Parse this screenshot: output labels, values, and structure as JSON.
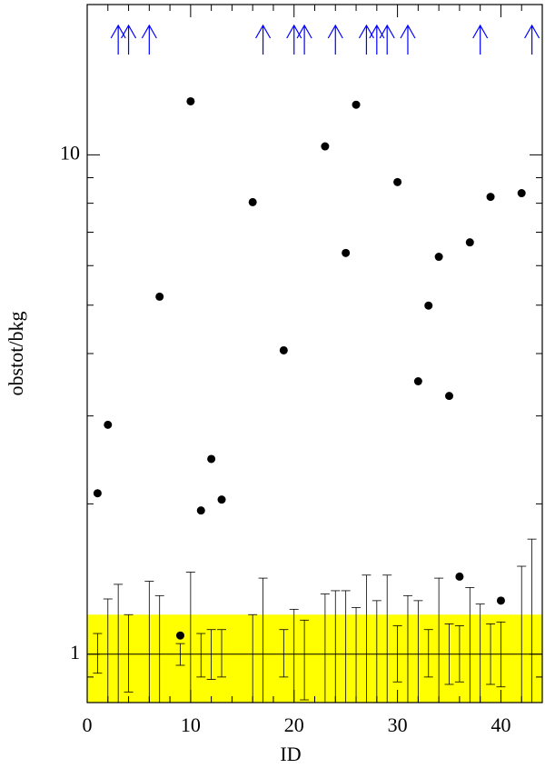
{
  "chart_data": {
    "type": "scatter",
    "xlabel": "ID",
    "ylabel": "obstot/bkg",
    "xlim": [
      0,
      44
    ],
    "ylim": [
      0.8,
      20
    ],
    "log_y": true,
    "xticks": [
      0,
      10,
      20,
      30,
      40
    ],
    "xminor_ticks": [
      2,
      4,
      6,
      8,
      12,
      14,
      16,
      18,
      22,
      24,
      26,
      28,
      32,
      34,
      36,
      38,
      42
    ],
    "yticks": [
      1,
      10
    ],
    "yminor_ticks": [
      0.8,
      0.9,
      2,
      3,
      4,
      5,
      6,
      7,
      8,
      9,
      20
    ],
    "band": {
      "range": [
        0.8,
        1.2
      ],
      "color": "#ffff00"
    },
    "hline": 1,
    "points": {
      "color": "#000000",
      "x": [
        1,
        2,
        7,
        9,
        10,
        11,
        12,
        13,
        16,
        19,
        23,
        25,
        26,
        30,
        32,
        33,
        34,
        35,
        36,
        37,
        39,
        40,
        42
      ],
      "values": [
        2.1,
        2.88,
        5.2,
        1.09,
        12.8,
        1.94,
        2.46,
        2.04,
        8.04,
        4.06,
        10.4,
        6.36,
        12.6,
        8.82,
        3.52,
        4.99,
        6.25,
        3.29,
        1.43,
        6.68,
        8.24,
        1.28,
        8.38
      ]
    },
    "error_bars": {
      "color": "#000000",
      "x": [
        1,
        2,
        3,
        4,
        6,
        7,
        9,
        10,
        11,
        12,
        13,
        16,
        17,
        19,
        20,
        21,
        23,
        24,
        25,
        26,
        27,
        28,
        29,
        30,
        31,
        32,
        33,
        34,
        35,
        36,
        37,
        38,
        39,
        40,
        42,
        43
      ],
      "upper": [
        1.1,
        1.29,
        1.38,
        1.2,
        1.4,
        1.31,
        1.05,
        1.46,
        1.1,
        1.12,
        1.12,
        1.2,
        1.42,
        1.12,
        1.23,
        1.17,
        1.32,
        1.34,
        1.34,
        1.24,
        1.44,
        1.28,
        1.44,
        1.14,
        1.31,
        1.28,
        1.12,
        1.42,
        1.15,
        1.14,
        1.36,
        1.26,
        1.15,
        1.16,
        1.5,
        1.7
      ],
      "lower": [
        0.916,
        null,
        null,
        0.84,
        null,
        null,
        0.95,
        null,
        0.9,
        0.89,
        0.9,
        null,
        null,
        0.9,
        null,
        0.81,
        null,
        null,
        null,
        null,
        null,
        null,
        null,
        0.88,
        null,
        null,
        0.9,
        null,
        0.87,
        0.88,
        null,
        null,
        0.87,
        0.86,
        null,
        null
      ]
    },
    "upper_limits": {
      "color": "#0000ff",
      "x": [
        3,
        4,
        6,
        17,
        20,
        21,
        24,
        27,
        28,
        29,
        31,
        38,
        43
      ]
    }
  }
}
